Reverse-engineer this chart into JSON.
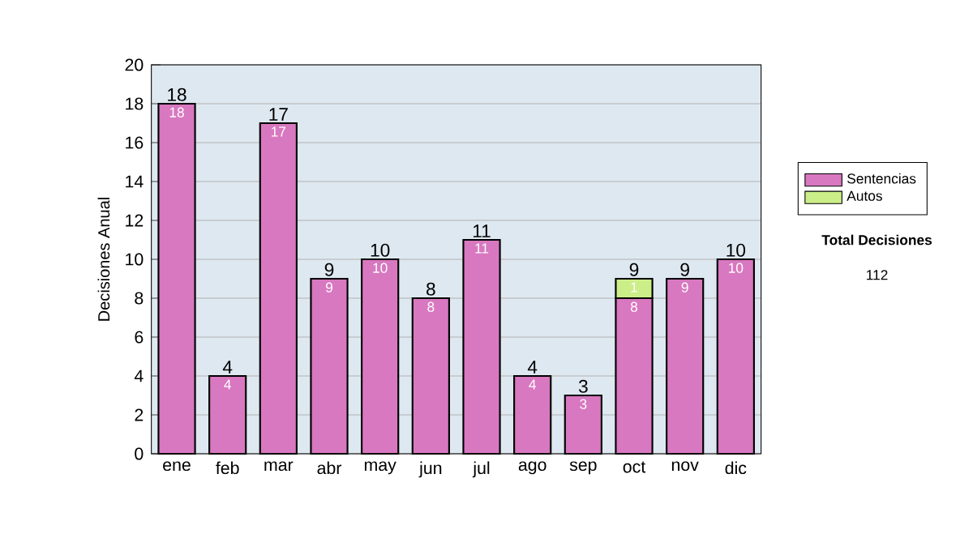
{
  "chart_data": {
    "type": "bar",
    "stacked": true,
    "ylabel": "Decisiones Anual",
    "categories": [
      "ene",
      "feb",
      "mar",
      "abr",
      "may",
      "jun",
      "jul",
      "ago",
      "sep",
      "oct",
      "nov",
      "dic"
    ],
    "series": [
      {
        "name": "Sentencias",
        "color": "#d878c0",
        "values": [
          18,
          4,
          17,
          9,
          10,
          8,
          11,
          4,
          3,
          8,
          9,
          10
        ],
        "value_labels": [
          "18",
          "4",
          "17",
          "9",
          "10",
          "8",
          "11",
          "4",
          "3",
          "8",
          "9",
          "10"
        ]
      },
      {
        "name": "Autos",
        "color": "#ccee88",
        "values": [
          null,
          null,
          null,
          null,
          null,
          null,
          null,
          null,
          null,
          1,
          null,
          null
        ],
        "value_labels": [
          null,
          null,
          null,
          null,
          null,
          null,
          null,
          null,
          null,
          "1",
          null,
          null
        ]
      }
    ],
    "totals": [
      "18",
      "4",
      "17",
      "9",
      "10",
      "8",
      "11",
      "4",
      "3",
      "9",
      "9",
      "10"
    ],
    "ylim": [
      0,
      20
    ],
    "yticks": [
      0,
      2,
      4,
      6,
      8,
      10,
      12,
      14,
      16,
      18,
      20
    ],
    "grid": "y",
    "legend": "right",
    "annotations": [
      "Total Decisiones",
      "112"
    ]
  }
}
